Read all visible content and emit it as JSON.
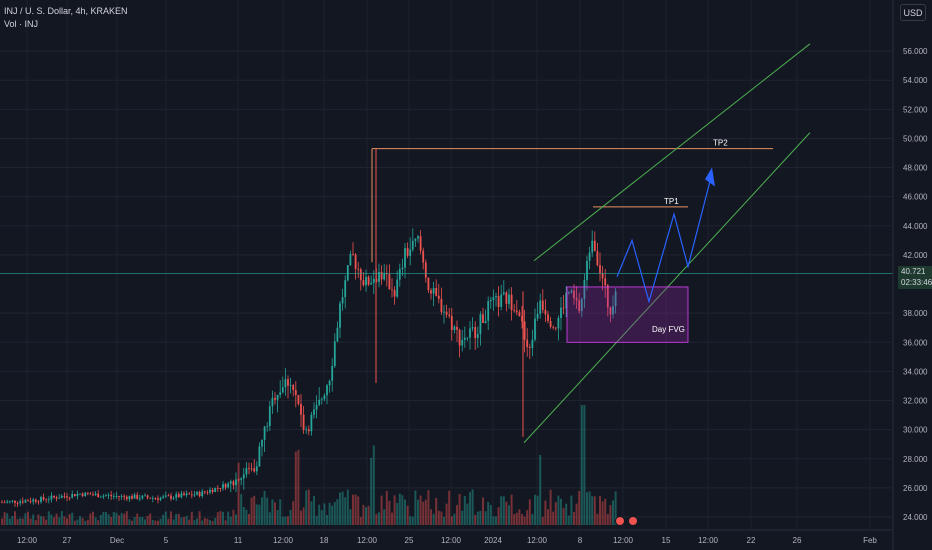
{
  "header": {
    "symbol_line": "INJ / U. S. Dollar, 4h, KRAKEN",
    "volume_line": "Vol · INJ"
  },
  "currency_button": "USD",
  "last_price": {
    "value": "40.721",
    "countdown": "02:33:46"
  },
  "price_axis": [
    "56.000",
    "54.000",
    "52.000",
    "50.000",
    "48.000",
    "46.000",
    "44.000",
    "42.000",
    "38.000",
    "36.000",
    "34.000",
    "32.000",
    "30.000",
    "28.000",
    "26.000",
    "24.000"
  ],
  "time_axis": [
    "12:00",
    "27",
    "Dec",
    "5",
    "11",
    "12:00",
    "18",
    "12:00",
    "25",
    "12:00",
    "2024",
    "12:00",
    "8",
    "12:00",
    "15",
    "12:00",
    "22",
    "26",
    "Feb"
  ],
  "annotations": {
    "tp1": "TP1",
    "tp2": "TP2",
    "fvg": "Day FVG"
  },
  "colors": {
    "background": "#131722",
    "up": "#26a69a",
    "down": "#ef5350",
    "channel": "#4caf50",
    "target_line": "#e8905f",
    "fvg_border": "#e040fb",
    "projection": "#2962ff"
  },
  "chart_data": {
    "type": "candlestick",
    "ylim": [
      23.5,
      57
    ],
    "last_price": 40.721,
    "levels": {
      "TP1": 45.3,
      "TP2": 49.3,
      "range_high": 49.3
    },
    "fvg_zone": [
      36.0,
      39.8
    ],
    "channel_upper": [
      [
        41.6,
        56.5
      ]
    ],
    "channel_lower": [
      [
        29.1,
        50.4
      ]
    ],
    "projection_path": [
      40.7,
      38.9,
      44.8,
      41.2,
      47.8
    ],
    "candles_overview": "approx 270 four-hour candles from late Nov 2023 to Jan 2024, rising from ~25 to ~46, range 36-43, then current 40.72"
  }
}
